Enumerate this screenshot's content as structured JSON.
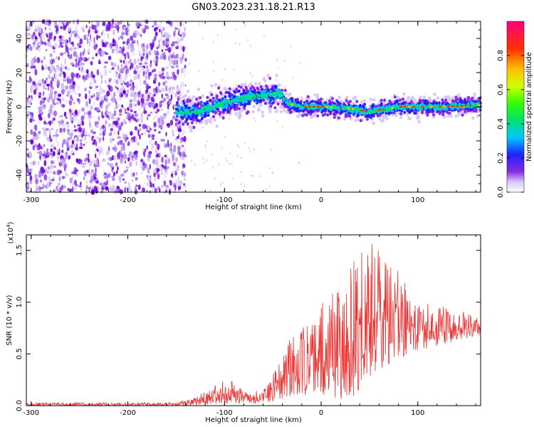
{
  "title": "GN03.2023.231.18.21.R13",
  "chart_data": [
    {
      "type": "heatmap",
      "xlabel": "Height of straight line (km)",
      "ylabel": "Frequency (Hz)",
      "xlim": [
        -305,
        165
      ],
      "ylim": [
        -50,
        50
      ],
      "xticks": [
        -300,
        -200,
        -100,
        0,
        100
      ],
      "xtick_labels": [
        "-300",
        "-200",
        "-100",
        "0",
        "100"
      ],
      "yticks": [
        -40,
        -20,
        0,
        20,
        40
      ],
      "ytick_labels": [
        "-40",
        "-20",
        "0",
        "20",
        "40"
      ],
      "colorbar": {
        "label": "Normalized spectral amplitude",
        "range": [
          0,
          1
        ],
        "ticks": [
          0.0,
          0.2,
          0.4,
          0.6,
          0.8
        ],
        "tick_labels": [
          "0.0",
          "0.2",
          "0.4",
          "0.6",
          "0.8"
        ]
      },
      "features": {
        "noise_region_x": [
          -305,
          -150
        ],
        "signal_ridge": [
          {
            "x": -150,
            "y": -3
          },
          {
            "x": -130,
            "y": -3
          },
          {
            "x": -110,
            "y": 0
          },
          {
            "x": -90,
            "y": 4
          },
          {
            "x": -70,
            "y": 6
          },
          {
            "x": -50,
            "y": 7
          },
          {
            "x": -42,
            "y": 8
          },
          {
            "x": -35,
            "y": 2
          },
          {
            "x": -20,
            "y": 0
          },
          {
            "x": 0,
            "y": 0
          },
          {
            "x": 30,
            "y": -1
          },
          {
            "x": 50,
            "y": -3
          },
          {
            "x": 80,
            "y": 0
          },
          {
            "x": 120,
            "y": 0
          },
          {
            "x": 165,
            "y": 1
          }
        ]
      }
    },
    {
      "type": "line",
      "xlabel": "Height of straight line (km)",
      "ylabel": "SNR (10 * v/v)",
      "y_multiplier": "(x10",
      "y_multiplier_exp": "4",
      "y_multiplier_close": ")",
      "xlim": [
        -305,
        165
      ],
      "ylim": [
        0,
        1.65
      ],
      "xticks": [
        -300,
        -200,
        -100,
        0,
        100
      ],
      "xtick_labels": [
        "-300",
        "-200",
        "-100",
        "0",
        "100"
      ],
      "yticks": [
        0.0,
        0.5,
        1.0,
        1.5
      ],
      "ytick_labels": [
        "0.0",
        "0.5",
        "1.0",
        "1.5"
      ],
      "series": [
        {
          "color": "#ee3333",
          "envelope": [
            {
              "x": -305,
              "min": 0.0,
              "max": 0.03
            },
            {
              "x": -150,
              "min": 0.0,
              "max": 0.03
            },
            {
              "x": -130,
              "min": 0.0,
              "max": 0.08
            },
            {
              "x": -110,
              "min": 0.02,
              "max": 0.2
            },
            {
              "x": -100,
              "min": 0.02,
              "max": 0.3
            },
            {
              "x": -80,
              "min": 0.02,
              "max": 0.15
            },
            {
              "x": -60,
              "min": 0.02,
              "max": 0.15
            },
            {
              "x": -45,
              "min": 0.05,
              "max": 0.42
            },
            {
              "x": -30,
              "min": 0.1,
              "max": 0.7
            },
            {
              "x": -10,
              "min": 0.1,
              "max": 0.85
            },
            {
              "x": 10,
              "min": 0.1,
              "max": 1.1
            },
            {
              "x": 20,
              "min": 0.05,
              "max": 1.4
            },
            {
              "x": 40,
              "min": 0.1,
              "max": 1.5
            },
            {
              "x": 52,
              "min": 0.3,
              "max": 1.62
            },
            {
              "x": 70,
              "min": 0.4,
              "max": 1.4
            },
            {
              "x": 90,
              "min": 0.5,
              "max": 1.2
            },
            {
              "x": 110,
              "min": 0.55,
              "max": 1.0
            },
            {
              "x": 130,
              "min": 0.6,
              "max": 0.95
            },
            {
              "x": 150,
              "min": 0.65,
              "max": 0.9
            },
            {
              "x": 165,
              "min": 0.68,
              "max": 0.85
            }
          ]
        }
      ]
    }
  ]
}
